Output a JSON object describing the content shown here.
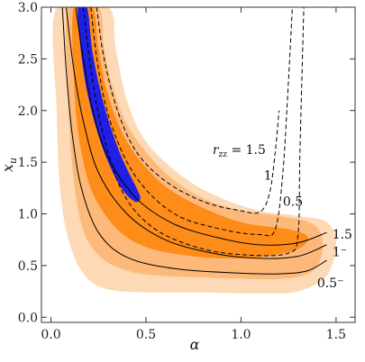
{
  "chart_data": {
    "type": "contour",
    "title": "",
    "xlabel": "α",
    "ylabel": "x_u",
    "xlim": [
      -0.05,
      1.6
    ],
    "ylim": [
      -0.05,
      3.0
    ],
    "xticks": [
      "0.0",
      "0.5",
      "1.0",
      "1.5"
    ],
    "xtick_values": [
      0.0,
      0.5,
      1.0,
      1.5
    ],
    "yticks": [
      "0.0",
      "0.5",
      "1.0",
      "1.5",
      "2.0",
      "2.5",
      "3.0"
    ],
    "ytick_values": [
      0.0,
      0.5,
      1.0,
      1.5,
      2.0,
      2.5,
      3.0
    ],
    "colors": {
      "region_light": "#fdd9b5",
      "region_mid": "#fcb97a",
      "region_dark": "#fd8c19",
      "region_blue": "#1f1fe6",
      "curve": "#000000"
    },
    "regions": [
      {
        "level": "light",
        "points": [
          [
            0.03,
            3.0
          ],
          [
            0.3,
            3.0
          ],
          [
            0.34,
            2.6
          ],
          [
            0.4,
            2.1
          ],
          [
            0.5,
            1.7
          ],
          [
            0.7,
            1.35
          ],
          [
            0.9,
            1.15
          ],
          [
            1.1,
            1.03
          ],
          [
            1.3,
            0.98
          ],
          [
            1.45,
            0.92
          ],
          [
            1.5,
            0.72
          ],
          [
            1.45,
            0.4
          ],
          [
            1.3,
            0.25
          ],
          [
            1.1,
            0.23
          ],
          [
            0.8,
            0.24
          ],
          [
            0.5,
            0.24
          ],
          [
            0.3,
            0.27
          ],
          [
            0.18,
            0.4
          ],
          [
            0.1,
            0.7
          ],
          [
            0.05,
            1.2
          ],
          [
            0.03,
            2.0
          ]
        ]
      },
      {
        "level": "mid",
        "points": [
          [
            0.09,
            3.0
          ],
          [
            0.25,
            3.0
          ],
          [
            0.28,
            2.6
          ],
          [
            0.33,
            2.2
          ],
          [
            0.42,
            1.8
          ],
          [
            0.6,
            1.4
          ],
          [
            0.8,
            1.15
          ],
          [
            1.0,
            1.03
          ],
          [
            1.2,
            0.98
          ],
          [
            1.38,
            0.9
          ],
          [
            1.43,
            0.7
          ],
          [
            1.38,
            0.45
          ],
          [
            1.2,
            0.37
          ],
          [
            0.9,
            0.38
          ],
          [
            0.6,
            0.4
          ],
          [
            0.4,
            0.45
          ],
          [
            0.25,
            0.6
          ],
          [
            0.16,
            0.9
          ],
          [
            0.11,
            1.5
          ],
          [
            0.09,
            2.2
          ]
        ]
      },
      {
        "level": "dark",
        "points": [
          [
            0.12,
            3.0
          ],
          [
            0.22,
            3.0
          ],
          [
            0.25,
            2.6
          ],
          [
            0.3,
            2.15
          ],
          [
            0.4,
            1.7
          ],
          [
            0.55,
            1.35
          ],
          [
            0.7,
            1.15
          ],
          [
            0.9,
            0.98
          ],
          [
            1.05,
            0.9
          ],
          [
            1.25,
            0.85
          ],
          [
            1.35,
            0.78
          ],
          [
            1.3,
            0.66
          ],
          [
            1.1,
            0.58
          ],
          [
            0.9,
            0.57
          ],
          [
            0.7,
            0.6
          ],
          [
            0.5,
            0.68
          ],
          [
            0.35,
            0.85
          ],
          [
            0.22,
            1.2
          ],
          [
            0.15,
            1.7
          ],
          [
            0.12,
            2.3
          ]
        ]
      },
      {
        "level": "blue",
        "points": [
          [
            0.14,
            3.0
          ],
          [
            0.19,
            3.0
          ],
          [
            0.22,
            2.55
          ],
          [
            0.28,
            2.05
          ],
          [
            0.36,
            1.6
          ],
          [
            0.45,
            1.25
          ],
          [
            0.47,
            1.15
          ],
          [
            0.44,
            1.12
          ],
          [
            0.37,
            1.25
          ],
          [
            0.29,
            1.55
          ],
          [
            0.22,
            1.95
          ],
          [
            0.17,
            2.4
          ]
        ]
      }
    ],
    "solid_curves": [
      {
        "label": "1.5",
        "points": [
          [
            0.13,
            3.0
          ],
          [
            0.17,
            2.5
          ],
          [
            0.22,
            2.0
          ],
          [
            0.3,
            1.55
          ],
          [
            0.45,
            1.15
          ],
          [
            0.65,
            0.9
          ],
          [
            0.9,
            0.76
          ],
          [
            1.1,
            0.7
          ],
          [
            1.3,
            0.72
          ],
          [
            1.45,
            0.82
          ]
        ]
      },
      {
        "label": "1⁻",
        "points": [
          [
            0.08,
            3.0
          ],
          [
            0.12,
            2.4
          ],
          [
            0.17,
            1.9
          ],
          [
            0.25,
            1.4
          ],
          [
            0.4,
            1.0
          ],
          [
            0.6,
            0.75
          ],
          [
            0.85,
            0.62
          ],
          [
            1.1,
            0.57
          ],
          [
            1.3,
            0.59
          ],
          [
            1.45,
            0.7
          ]
        ]
      },
      {
        "label": "0.5⁻",
        "points": [
          [
            0.06,
            3.0
          ],
          [
            0.08,
            2.4
          ],
          [
            0.11,
            1.8
          ],
          [
            0.16,
            1.25
          ],
          [
            0.25,
            0.82
          ],
          [
            0.4,
            0.58
          ],
          [
            0.65,
            0.47
          ],
          [
            0.95,
            0.43
          ],
          [
            1.2,
            0.42
          ],
          [
            1.35,
            0.45
          ],
          [
            1.45,
            0.55
          ]
        ]
      }
    ],
    "dashed_curves": [
      {
        "label": "r_zz = 1.5",
        "points": [
          [
            0.24,
            3.0
          ],
          [
            0.28,
            2.5
          ],
          [
            0.35,
            2.0
          ],
          [
            0.45,
            1.6
          ],
          [
            0.6,
            1.32
          ],
          [
            0.8,
            1.12
          ],
          [
            1.0,
            1.03
          ],
          [
            1.1,
            1.02
          ],
          [
            1.15,
            1.2
          ],
          [
            1.18,
            1.6
          ],
          [
            1.2,
            2.0
          ]
        ]
      },
      {
        "label": "1",
        "points": [
          [
            0.21,
            3.0
          ],
          [
            0.25,
            2.4
          ],
          [
            0.32,
            1.85
          ],
          [
            0.45,
            1.35
          ],
          [
            0.65,
            1.0
          ],
          [
            0.9,
            0.85
          ],
          [
            1.1,
            0.8
          ],
          [
            1.18,
            0.85
          ],
          [
            1.22,
            1.4
          ],
          [
            1.25,
            2.3
          ],
          [
            1.27,
            3.0
          ]
        ]
      },
      {
        "label": "0.5",
        "points": [
          [
            0.17,
            3.0
          ],
          [
            0.21,
            2.4
          ],
          [
            0.27,
            1.8
          ],
          [
            0.38,
            1.2
          ],
          [
            0.55,
            0.85
          ],
          [
            0.8,
            0.66
          ],
          [
            1.05,
            0.6
          ],
          [
            1.25,
            0.62
          ],
          [
            1.3,
            0.8
          ],
          [
            1.31,
            1.6
          ],
          [
            1.33,
            3.0
          ]
        ]
      }
    ],
    "annotations": [
      {
        "text": "r_zz = 1.5",
        "x": 0.85,
        "y": 1.58
      },
      {
        "text": "1",
        "x": 1.12,
        "y": 1.33
      },
      {
        "text": "0.5",
        "x": 1.22,
        "y": 1.08
      },
      {
        "text": "1.5",
        "x": 1.48,
        "y": 0.76
      },
      {
        "text": "1⁻",
        "x": 1.48,
        "y": 0.59
      },
      {
        "text": "0.5⁻",
        "x": 1.4,
        "y": 0.29
      }
    ]
  }
}
